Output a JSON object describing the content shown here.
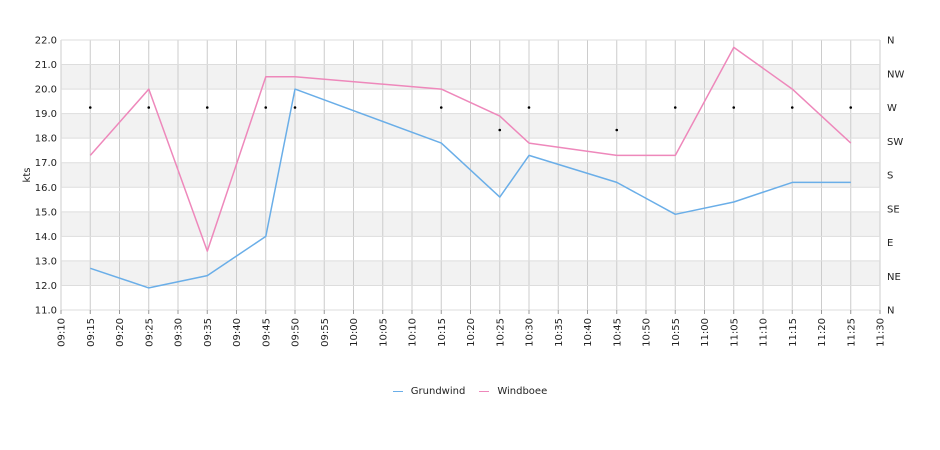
{
  "chart_data": {
    "type": "line",
    "ylabel": "kts",
    "ylim": [
      11.0,
      22.0
    ],
    "y_ticks": [
      "11.0",
      "12.0",
      "13.0",
      "14.0",
      "15.0",
      "16.0",
      "17.0",
      "18.0",
      "19.0",
      "20.0",
      "21.0",
      "22.0"
    ],
    "x_ticks": [
      "09:10",
      "09:15",
      "09:20",
      "09:25",
      "09:30",
      "09:35",
      "09:40",
      "09:45",
      "09:50",
      "09:55",
      "10:00",
      "10:05",
      "10:10",
      "10:15",
      "10:20",
      "10:25",
      "10:30",
      "10:35",
      "10:40",
      "10:45",
      "10:50",
      "10:55",
      "11:00",
      "11:05",
      "11:10",
      "11:15",
      "11:20",
      "11:25",
      "11:30"
    ],
    "x_range_minutes": [
      550,
      690
    ],
    "right_axis": {
      "labels": [
        "N",
        "NE",
        "E",
        "SE",
        "S",
        "SW",
        "W",
        "NW",
        "N"
      ],
      "range": [
        0,
        360
      ]
    },
    "grid": true,
    "band_color": "#f2f2f2",
    "legend_position": "bottom",
    "series": [
      {
        "name": "Grundwind",
        "color": "#6aaee8",
        "x": [
          "09:15",
          "09:25",
          "09:35",
          "09:45",
          "09:50",
          "10:15",
          "10:25",
          "10:30",
          "10:45",
          "10:55",
          "11:05",
          "11:15",
          "11:25"
        ],
        "values": [
          12.7,
          11.9,
          12.4,
          14.0,
          20.0,
          17.8,
          15.6,
          17.3,
          16.2,
          14.9,
          15.4,
          16.2,
          16.2
        ]
      },
      {
        "name": "Windboee",
        "color": "#ee88bb",
        "x": [
          "09:15",
          "09:25",
          "09:35",
          "09:45",
          "09:50",
          "10:15",
          "10:25",
          "10:30",
          "10:45",
          "10:55",
          "11:05",
          "11:15",
          "11:25"
        ],
        "values": [
          17.3,
          20.0,
          13.4,
          20.5,
          20.5,
          20.0,
          18.9,
          17.8,
          17.3,
          17.3,
          21.7,
          20.0,
          17.8
        ]
      }
    ],
    "direction": {
      "x": [
        "09:15",
        "09:25",
        "09:35",
        "09:45",
        "09:50",
        "10:15",
        "10:25",
        "10:30",
        "10:45",
        "10:55",
        "11:05",
        "11:15",
        "11:25"
      ],
      "degrees": [
        270,
        270,
        270,
        270,
        270,
        270,
        240,
        270,
        240,
        270,
        270,
        270,
        270
      ]
    }
  }
}
